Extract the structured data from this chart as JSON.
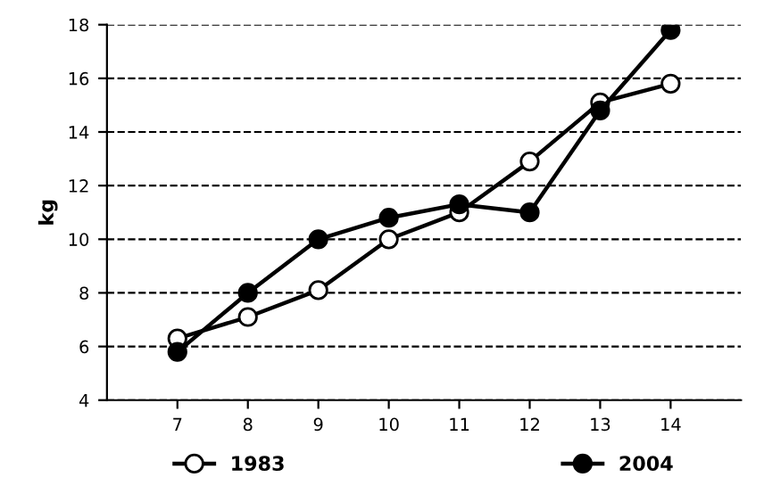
{
  "chart_data": {
    "type": "line",
    "ylabel": "kg",
    "categories": [
      "7",
      "8",
      "9",
      "10",
      "11",
      "12",
      "13",
      "14"
    ],
    "series": [
      {
        "name": "1983",
        "color": "#000000",
        "marker": "circle",
        "values": [
          6.3,
          7.1,
          8.1,
          10.0,
          11.0,
          12.9,
          15.1,
          15.8
        ]
      },
      {
        "name": "2004",
        "color": "#000000",
        "marker": "circle",
        "values": [
          5.8,
          8.0,
          10.0,
          10.8,
          11.3,
          11.0,
          14.8,
          17.8
        ]
      }
    ],
    "ylim": [
      4,
      18
    ],
    "yticks": [
      4,
      6,
      8,
      10,
      12,
      14,
      16,
      18
    ],
    "grid": "y",
    "legend": "bottom",
    "line_style": "solid"
  }
}
